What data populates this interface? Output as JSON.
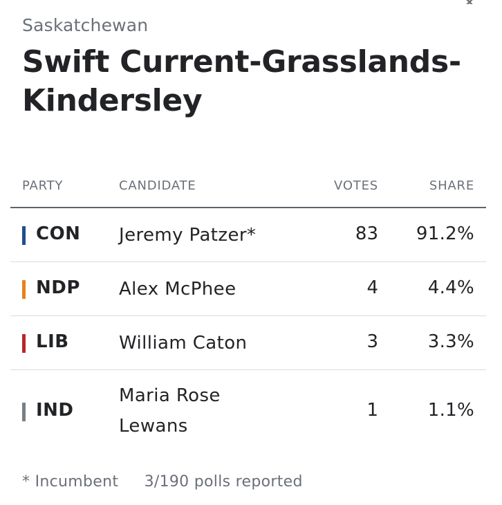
{
  "header": {
    "province": "Saskatchewan",
    "riding": "Swift Current-Grasslands-Kindersley"
  },
  "table": {
    "columns": {
      "party": "PARTY",
      "candidate": "CANDIDATE",
      "votes": "VOTES",
      "share": "SHARE"
    },
    "rows": [
      {
        "party": "CON",
        "color": "#1f4e8c",
        "candidate": "Jeremy Patzer*",
        "votes": "83",
        "share": "91.2%"
      },
      {
        "party": "NDP",
        "color": "#e8821e",
        "candidate": "Alex McPhee",
        "votes": "4",
        "share": "4.4%"
      },
      {
        "party": "LIB",
        "color": "#b8262d",
        "candidate": "William Caton",
        "votes": "3",
        "share": "3.3%"
      },
      {
        "party": "IND",
        "color": "#7a7f86",
        "candidate": "Maria Rose Lewans",
        "votes": "1",
        "share": "1.1%"
      }
    ]
  },
  "footer": {
    "incumbent_note": "* Incumbent",
    "polls_reported": "3/190 polls reported"
  },
  "icons": {
    "close": "close-icon"
  }
}
